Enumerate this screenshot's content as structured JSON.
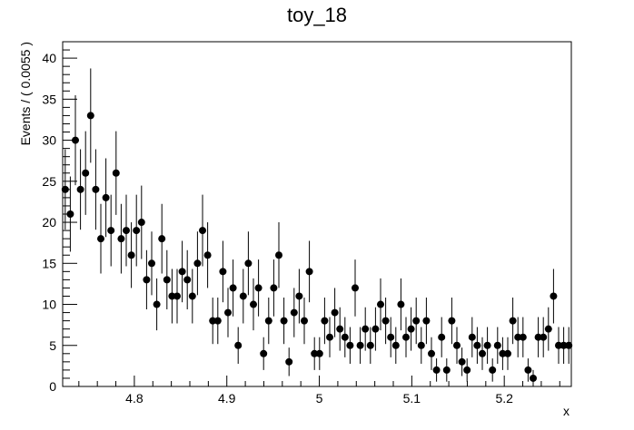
{
  "chart_data": {
    "type": "scatter",
    "title": "toy_18",
    "xlabel": "x",
    "ylabel": "Events / ( 0.0055 )",
    "xlim": [
      4.7225,
      5.2725
    ],
    "ylim": [
      0,
      42
    ],
    "bin_width": 0.0055,
    "x_ticks": [
      4.8,
      4.9,
      5.0,
      5.1,
      5.2
    ],
    "x_tick_labels": [
      "4.8",
      "4.9",
      "5",
      "5.1",
      "5.2"
    ],
    "y_ticks": [
      0,
      5,
      10,
      15,
      20,
      25,
      30,
      35,
      40
    ],
    "y_tick_labels": [
      "0",
      "5",
      "10",
      "15",
      "20",
      "25",
      "30",
      "35",
      "40"
    ],
    "grid": false,
    "error_bars": "sqrt(N)",
    "marker_color": "#000000",
    "values": [
      24,
      21,
      30,
      24,
      26,
      33,
      24,
      18,
      23,
      19,
      26,
      18,
      19,
      16,
      19,
      20,
      13,
      15,
      10,
      18,
      13,
      11,
      11,
      14,
      13,
      11,
      15,
      19,
      16,
      8,
      8,
      14,
      9,
      12,
      5,
      11,
      15,
      10,
      12,
      4,
      8,
      12,
      16,
      8,
      3,
      9,
      11,
      8,
      14,
      4,
      4,
      8,
      6,
      9,
      7,
      6,
      5,
      12,
      5,
      7,
      5,
      7,
      10,
      8,
      6,
      5,
      10,
      6,
      7,
      8,
      5,
      8,
      4,
      2,
      6,
      2,
      8,
      5,
      3,
      2,
      6,
      5,
      4,
      5,
      2,
      5,
      4,
      4,
      8,
      6,
      6,
      2,
      1,
      6,
      6,
      7,
      11,
      5,
      5,
      5
    ]
  }
}
